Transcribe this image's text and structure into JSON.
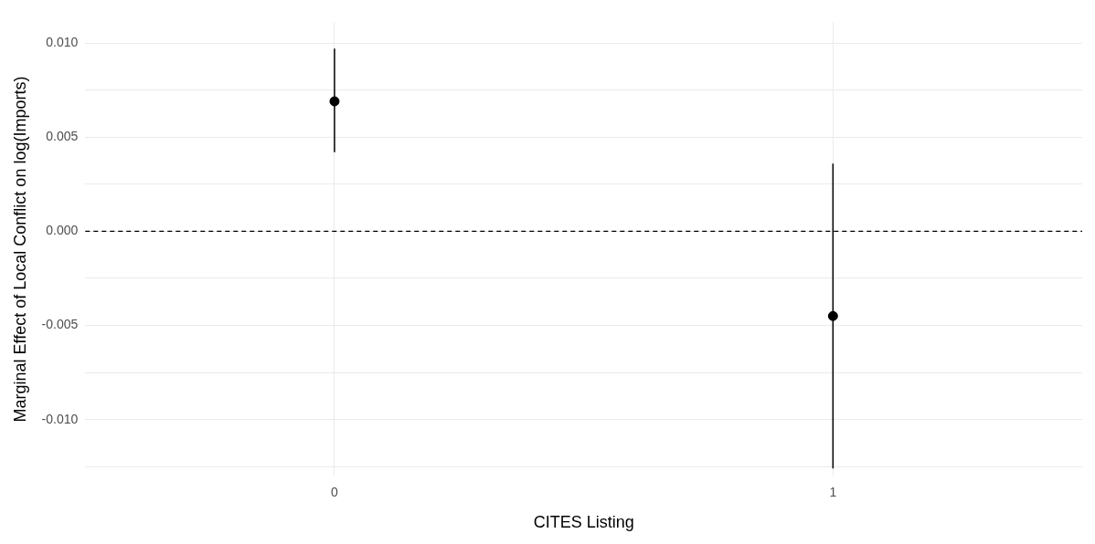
{
  "chart_data": {
    "type": "scatter",
    "xlabel": "CITES Listing",
    "ylabel": "Marginal Effect of Local Conflict on log(Imports)",
    "categories": [
      "0",
      "1"
    ],
    "values": [
      0.0069,
      -0.0045
    ],
    "errors": [
      [
        0.0042,
        0.0097
      ],
      [
        -0.0126,
        0.0036
      ]
    ],
    "color": "#000000",
    "marker": "circle",
    "ylim": [
      -0.013,
      0.0111
    ],
    "yticks": [
      {
        "value": -0.0125,
        "label": null
      },
      {
        "value": -0.01,
        "label": "-0.010"
      },
      {
        "value": -0.0075,
        "label": null
      },
      {
        "value": -0.005,
        "label": "-0.005"
      },
      {
        "value": -0.0025,
        "label": null
      },
      {
        "value": 0,
        "label": "0.000"
      },
      {
        "value": 0.0025,
        "label": null
      },
      {
        "value": 0.005,
        "label": "0.005"
      },
      {
        "value": 0.0075,
        "label": null
      },
      {
        "value": 0.01,
        "label": "0.010"
      }
    ],
    "ref_lines": [
      {
        "axis": "y",
        "value": 0,
        "label": null,
        "color": "#000000",
        "line_style": "dashed"
      }
    ],
    "grid": true,
    "legend": false
  }
}
